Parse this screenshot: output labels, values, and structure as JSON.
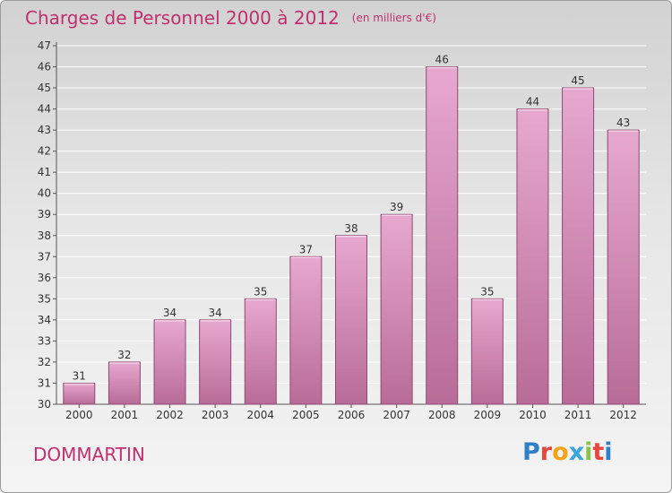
{
  "header": {
    "title": "Charges de Personnel 2000 à 2012",
    "subtitle": "(en milliers d'€)"
  },
  "footer": {
    "city": "DOMMARTIN",
    "logo_text": "Proxiti",
    "logo_colors": [
      "#2f7fc9",
      "#e8453c",
      "#f2a51b",
      "#3aa6d9",
      "#8bc34a",
      "#e8453c",
      "#2f7fc9"
    ]
  },
  "colors": {
    "title": "#c0306e",
    "bar_top": "#e7a8cf",
    "bar_bottom": "#b86c97",
    "bar_stroke": "#8f4a71",
    "grid": "#ffffff",
    "axis_text": "#333333"
  },
  "chart_data": {
    "type": "bar",
    "categories": [
      "2000",
      "2001",
      "2002",
      "2003",
      "2004",
      "2005",
      "2006",
      "2007",
      "2008",
      "2009",
      "2010",
      "2011",
      "2012"
    ],
    "values": [
      31,
      32,
      34,
      34,
      35,
      37,
      38,
      39,
      46,
      35,
      44,
      45,
      43
    ],
    "data_labels": [
      "31",
      "32",
      "34",
      "34",
      "35",
      "37",
      "38",
      "39",
      "46",
      "35",
      "44",
      "45",
      "43"
    ],
    "yticks": [
      30,
      31,
      32,
      33,
      34,
      35,
      36,
      37,
      38,
      39,
      40,
      41,
      42,
      43,
      44,
      45,
      46,
      47
    ],
    "ylim": [
      30,
      47
    ],
    "grid": true,
    "legend": "none"
  }
}
